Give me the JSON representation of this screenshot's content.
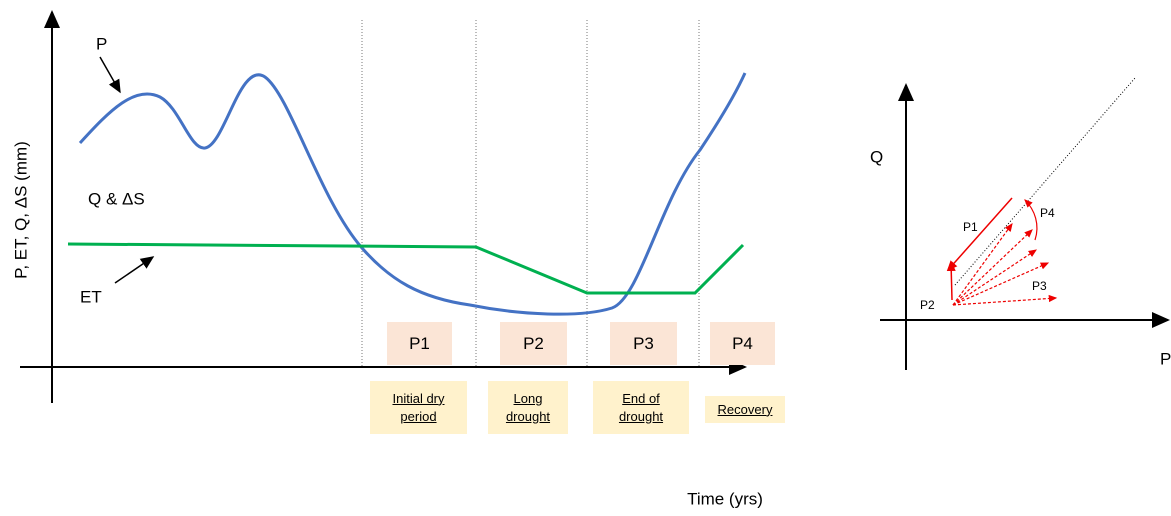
{
  "left_panel": {
    "y_axis_label": "P, ET, Q, ΔS (mm)",
    "x_axis_label": "Time (yrs)",
    "curve_labels": [
      "P",
      "Q & ΔS",
      "ET"
    ],
    "periods": [
      {
        "label": "P1",
        "description": "Initial dry period"
      },
      {
        "label": "P2",
        "description": "Long drought"
      },
      {
        "label": "P3",
        "description": "End of drought"
      },
      {
        "label": "P4",
        "description": "Recovery"
      }
    ]
  },
  "right_panel": {
    "y_axis_label": "Q",
    "x_axis_label": "P",
    "arrow_labels": [
      "P1",
      "P2",
      "P3",
      "P4"
    ]
  }
}
